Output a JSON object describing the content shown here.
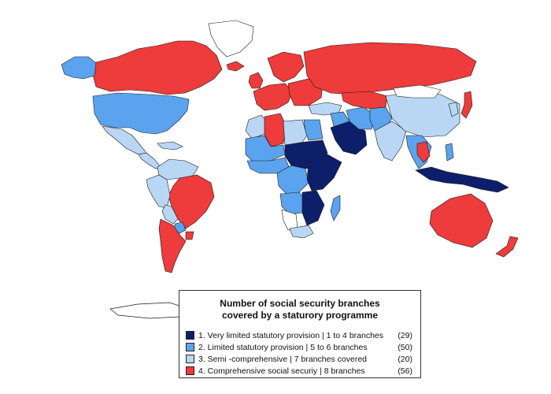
{
  "legend": {
    "title_line1": "Number of social security branches",
    "title_line2": "covered by a staturory programme",
    "items": [
      {
        "label": "1. Very limited statutory provision | 1 to 4 branches",
        "count": "(29)",
        "color": "#0d1f6b"
      },
      {
        "label": "2. Limited statutory provision | 5 to 6 branches",
        "count": "(50)",
        "color": "#5ba3ee"
      },
      {
        "label": "3. Semi -comprehensive | 7 branches covered",
        "count": "(20)",
        "color": "#b9d6f5"
      },
      {
        "label": "4. Comprehensive social securiy | 8 branches",
        "count": "(56)",
        "color": "#ee3b3b"
      }
    ]
  },
  "colors": {
    "category_1": "#0d1f6b",
    "category_2": "#5ba3ee",
    "category_3": "#b9d6f5",
    "category_4": "#ee3b3b",
    "no_data": "#ffffff",
    "border": "#1a1a1a"
  },
  "map_regions": [
    {
      "name": "canada",
      "category": 4
    },
    {
      "name": "alaska",
      "category": 2
    },
    {
      "name": "greenland",
      "category": 0
    },
    {
      "name": "usa",
      "category": 2
    },
    {
      "name": "mexico",
      "category": 3
    },
    {
      "name": "central-america",
      "category": 3
    },
    {
      "name": "caribbean",
      "category": 3
    },
    {
      "name": "colombia-venezuela",
      "category": 3
    },
    {
      "name": "brazil",
      "category": 4
    },
    {
      "name": "peru-ecuador",
      "category": 3
    },
    {
      "name": "bolivia",
      "category": 3
    },
    {
      "name": "paraguay",
      "category": 2
    },
    {
      "name": "argentina-chile",
      "category": 4
    },
    {
      "name": "uruguay",
      "category": 4
    },
    {
      "name": "iceland",
      "category": 4
    },
    {
      "name": "uk-ireland",
      "category": 4
    },
    {
      "name": "scandinavia",
      "category": 4
    },
    {
      "name": "western-europe",
      "category": 4
    },
    {
      "name": "eastern-europe",
      "category": 4
    },
    {
      "name": "russia",
      "category": 4
    },
    {
      "name": "turkey",
      "category": 3
    },
    {
      "name": "north-africa-west",
      "category": 3
    },
    {
      "name": "algeria",
      "category": 4
    },
    {
      "name": "libya",
      "category": 3
    },
    {
      "name": "egypt",
      "category": 2
    },
    {
      "name": "sahel-west",
      "category": 2
    },
    {
      "name": "chad-sudan",
      "category": 1
    },
    {
      "name": "west-africa-coast",
      "category": 2
    },
    {
      "name": "central-africa",
      "category": 2
    },
    {
      "name": "east-africa",
      "category": 1
    },
    {
      "name": "angola-drc-south",
      "category": 2
    },
    {
      "name": "southern-africa-east",
      "category": 1
    },
    {
      "name": "namibia",
      "category": 0
    },
    {
      "name": "south-africa",
      "category": 3
    },
    {
      "name": "madagascar",
      "category": 2
    },
    {
      "name": "arabia",
      "category": 1
    },
    {
      "name": "middle-east",
      "category": 2
    },
    {
      "name": "iran",
      "category": 2
    },
    {
      "name": "central-asia",
      "category": 4
    },
    {
      "name": "afghanistan-pakistan",
      "category": 2
    },
    {
      "name": "india",
      "category": 3
    },
    {
      "name": "china",
      "category": 3
    },
    {
      "name": "mongolia",
      "category": 0
    },
    {
      "name": "korea",
      "category": 3
    },
    {
      "name": "japan",
      "category": 4
    },
    {
      "name": "southeast-asia",
      "category": 2
    },
    {
      "name": "thailand",
      "category": 4
    },
    {
      "name": "indonesia-png",
      "category": 1
    },
    {
      "name": "philippines",
      "category": 2
    },
    {
      "name": "australia",
      "category": 4
    },
    {
      "name": "new-zealand",
      "category": 4
    },
    {
      "name": "antarctica",
      "category": 0
    }
  ]
}
